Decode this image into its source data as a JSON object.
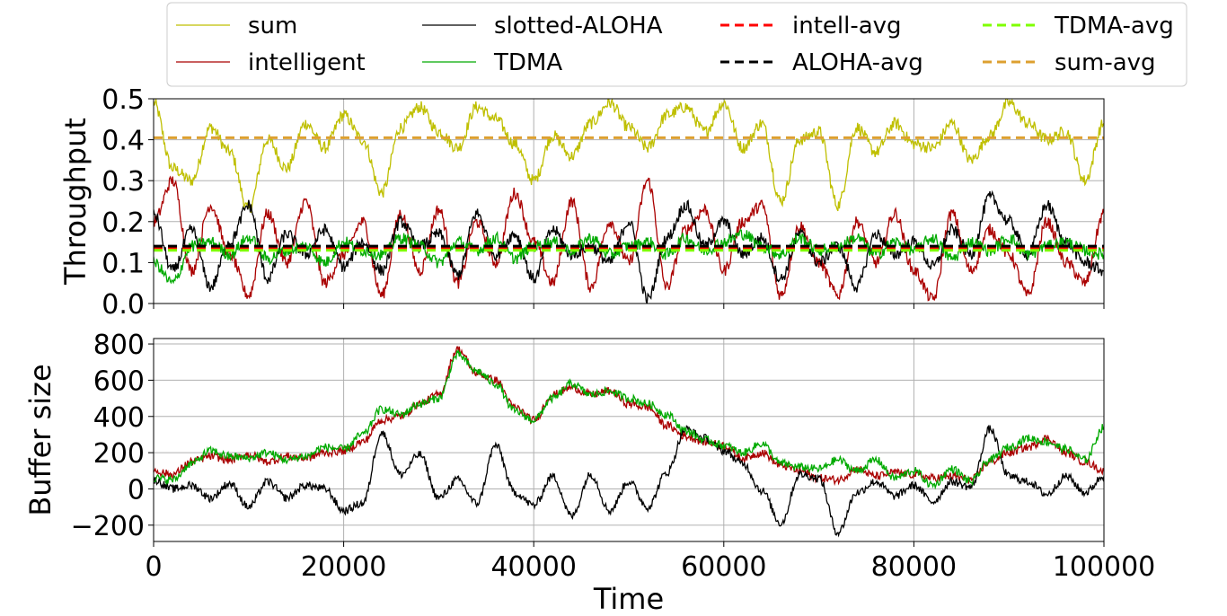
{
  "chart_data": [
    {
      "type": "line",
      "title": "",
      "xlabel": "",
      "ylabel": "Throughput",
      "xlim": [
        0,
        100000
      ],
      "ylim": [
        0.0,
        0.5
      ],
      "xticks": [
        "0",
        "20000",
        "40000",
        "60000",
        "80000",
        "100000"
      ],
      "yticks": [
        "0.0",
        "0.1",
        "0.2",
        "0.3",
        "0.4",
        "0.5"
      ],
      "grid": true,
      "legend": {
        "placement": "top",
        "columns": 4,
        "entries": [
          {
            "label": "sum",
            "color": "#bfbf00",
            "style": "solid"
          },
          {
            "label": "intelligent",
            "color": "#aa0000",
            "style": "solid"
          },
          {
            "label": "slotted-ALOHA",
            "color": "#000000",
            "style": "solid"
          },
          {
            "label": "TDMA",
            "color": "#00aa00",
            "style": "solid"
          },
          {
            "label": "intell-avg",
            "color": "#ff0000",
            "style": "dashed"
          },
          {
            "label": "ALOHA-avg",
            "color": "#000000",
            "style": "dashed"
          },
          {
            "label": "TDMA-avg",
            "color": "#7fff00",
            "style": "dashed"
          },
          {
            "label": "sum-avg",
            "color": "#dda030",
            "style": "dashed"
          }
        ]
      },
      "x": [
        0,
        2000,
        4000,
        6000,
        8000,
        10000,
        12000,
        14000,
        16000,
        18000,
        20000,
        22000,
        24000,
        26000,
        28000,
        30000,
        32000,
        34000,
        36000,
        38000,
        40000,
        42000,
        44000,
        46000,
        48000,
        50000,
        52000,
        54000,
        56000,
        58000,
        60000,
        62000,
        64000,
        66000,
        68000,
        70000,
        72000,
        74000,
        76000,
        78000,
        80000,
        82000,
        84000,
        86000,
        88000,
        90000,
        92000,
        94000,
        96000,
        98000,
        100000
      ],
      "series": [
        {
          "name": "sum",
          "color": "#bfbf00",
          "style": "solid",
          "values": [
            0.49,
            0.33,
            0.3,
            0.43,
            0.37,
            0.23,
            0.4,
            0.33,
            0.44,
            0.38,
            0.46,
            0.4,
            0.27,
            0.43,
            0.48,
            0.42,
            0.38,
            0.48,
            0.45,
            0.39,
            0.3,
            0.41,
            0.36,
            0.44,
            0.49,
            0.43,
            0.38,
            0.46,
            0.48,
            0.42,
            0.49,
            0.38,
            0.44,
            0.25,
            0.4,
            0.42,
            0.24,
            0.43,
            0.37,
            0.44,
            0.39,
            0.38,
            0.44,
            0.35,
            0.41,
            0.49,
            0.44,
            0.4,
            0.42,
            0.3,
            0.44
          ]
        },
        {
          "name": "intelligent",
          "color": "#aa0000",
          "style": "solid",
          "values": [
            0.2,
            0.3,
            0.08,
            0.24,
            0.12,
            0.02,
            0.22,
            0.1,
            0.25,
            0.05,
            0.12,
            0.2,
            0.02,
            0.22,
            0.08,
            0.23,
            0.05,
            0.2,
            0.1,
            0.27,
            0.15,
            0.05,
            0.25,
            0.04,
            0.2,
            0.1,
            0.3,
            0.04,
            0.18,
            0.23,
            0.08,
            0.2,
            0.24,
            0.02,
            0.19,
            0.1,
            0.02,
            0.2,
            0.1,
            0.22,
            0.08,
            0.01,
            0.22,
            0.08,
            0.18,
            0.12,
            0.02,
            0.2,
            0.1,
            0.05,
            0.22
          ]
        },
        {
          "name": "slotted-ALOHA",
          "color": "#000000",
          "style": "solid",
          "values": [
            0.22,
            0.08,
            0.18,
            0.04,
            0.15,
            0.24,
            0.06,
            0.17,
            0.12,
            0.18,
            0.09,
            0.15,
            0.08,
            0.2,
            0.14,
            0.17,
            0.07,
            0.22,
            0.12,
            0.17,
            0.06,
            0.18,
            0.12,
            0.14,
            0.1,
            0.2,
            0.01,
            0.16,
            0.24,
            0.14,
            0.2,
            0.12,
            0.16,
            0.06,
            0.17,
            0.1,
            0.14,
            0.04,
            0.17,
            0.12,
            0.15,
            0.09,
            0.18,
            0.12,
            0.26,
            0.2,
            0.12,
            0.24,
            0.15,
            0.1,
            0.08
          ]
        },
        {
          "name": "TDMA",
          "color": "#00aa00",
          "style": "solid",
          "values": [
            0.1,
            0.05,
            0.14,
            0.15,
            0.12,
            0.16,
            0.11,
            0.13,
            0.14,
            0.1,
            0.15,
            0.13,
            0.12,
            0.16,
            0.14,
            0.1,
            0.15,
            0.13,
            0.16,
            0.11,
            0.14,
            0.15,
            0.13,
            0.16,
            0.12,
            0.14,
            0.15,
            0.12,
            0.16,
            0.13,
            0.15,
            0.17,
            0.14,
            0.12,
            0.16,
            0.13,
            0.14,
            0.16,
            0.12,
            0.15,
            0.13,
            0.16,
            0.11,
            0.15,
            0.13,
            0.16,
            0.12,
            0.14,
            0.15,
            0.13,
            0.12
          ]
        },
        {
          "name": "intell-avg",
          "color": "#ff0000",
          "style": "dashed",
          "constant": 0.135
        },
        {
          "name": "ALOHA-avg",
          "color": "#000000",
          "style": "dashed",
          "constant": 0.14
        },
        {
          "name": "TDMA-avg",
          "color": "#7fff00",
          "style": "dashed",
          "constant": 0.13
        },
        {
          "name": "sum-avg",
          "color": "#dda030",
          "style": "dashed",
          "constant": 0.405
        }
      ]
    },
    {
      "type": "line",
      "title": "",
      "xlabel": "Time",
      "ylabel": "Buffer size",
      "xlim": [
        0,
        100000
      ],
      "ylim": [
        -290,
        830
      ],
      "xticks": [
        "0",
        "20000",
        "40000",
        "60000",
        "80000",
        "100000"
      ],
      "yticks": [
        "−200",
        "0",
        "200",
        "400",
        "600",
        "800"
      ],
      "grid": true,
      "x": [
        0,
        2000,
        4000,
        6000,
        8000,
        10000,
        12000,
        14000,
        16000,
        18000,
        20000,
        22000,
        24000,
        26000,
        28000,
        30000,
        32000,
        34000,
        36000,
        38000,
        40000,
        42000,
        44000,
        46000,
        48000,
        50000,
        52000,
        54000,
        56000,
        58000,
        60000,
        62000,
        64000,
        66000,
        68000,
        70000,
        72000,
        74000,
        76000,
        78000,
        80000,
        82000,
        84000,
        86000,
        88000,
        90000,
        92000,
        94000,
        96000,
        98000,
        100000
      ],
      "series": [
        {
          "name": "intelligent",
          "color": "#aa0000",
          "style": "solid",
          "values": [
            100,
            80,
            150,
            180,
            160,
            190,
            150,
            180,
            170,
            200,
            210,
            260,
            380,
            400,
            470,
            520,
            770,
            640,
            600,
            450,
            380,
            520,
            560,
            520,
            540,
            470,
            450,
            350,
            290,
            260,
            240,
            170,
            200,
            130,
            100,
            60,
            50,
            110,
            70,
            90,
            80,
            60,
            70,
            50,
            150,
            200,
            230,
            280,
            200,
            150,
            100
          ]
        },
        {
          "name": "slotted-ALOHA",
          "color": "#000000",
          "style": "solid",
          "values": [
            50,
            0,
            20,
            -50,
            30,
            -100,
            40,
            -50,
            20,
            0,
            -120,
            -80,
            310,
            80,
            190,
            -50,
            50,
            -80,
            240,
            -20,
            -90,
            70,
            -150,
            80,
            -120,
            40,
            -100,
            90,
            330,
            280,
            210,
            140,
            -10,
            -190,
            80,
            60,
            -240,
            -20,
            40,
            -40,
            20,
            -70,
            40,
            10,
            330,
            70,
            40,
            -30,
            70,
            -20,
            70
          ]
        },
        {
          "name": "TDMA",
          "color": "#00aa00",
          "style": "solid",
          "values": [
            60,
            50,
            140,
            210,
            180,
            170,
            200,
            160,
            180,
            230,
            220,
            300,
            440,
            410,
            470,
            500,
            740,
            650,
            580,
            430,
            380,
            500,
            580,
            520,
            540,
            500,
            470,
            410,
            320,
            270,
            240,
            200,
            250,
            140,
            120,
            110,
            160,
            100,
            160,
            60,
            100,
            20,
            110,
            40,
            160,
            230,
            280,
            260,
            220,
            160,
            340
          ]
        }
      ]
    }
  ]
}
